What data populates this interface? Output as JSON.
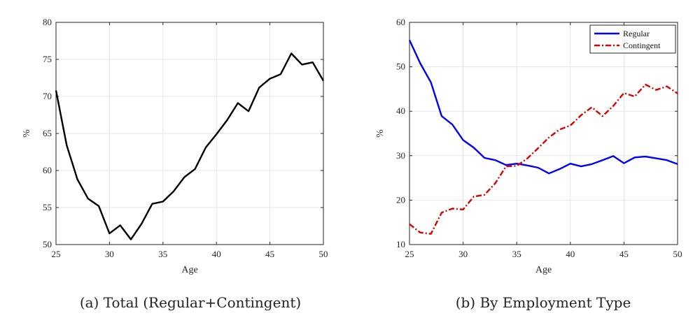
{
  "chart_data": [
    {
      "type": "line",
      "caption": "(a) Total (Regular+Contingent)",
      "xlabel": "Age",
      "ylabel": "%",
      "xlim": [
        25,
        50
      ],
      "ylim": [
        50,
        80
      ],
      "xticks": [
        25,
        30,
        35,
        40,
        45,
        50
      ],
      "yticks": [
        50,
        55,
        60,
        65,
        70,
        75,
        80
      ],
      "grid": true,
      "x": [
        25,
        26,
        27,
        28,
        29,
        30,
        31,
        32,
        33,
        34,
        35,
        36,
        37,
        38,
        39,
        40,
        41,
        42,
        43,
        44,
        45,
        46,
        47,
        48,
        49,
        50
      ],
      "series": [
        {
          "name": "",
          "color": "#000000",
          "dash": "solid",
          "values": [
            70.8,
            63.4,
            58.8,
            56.2,
            55.2,
            51.5,
            52.6,
            50.7,
            52.8,
            55.5,
            55.8,
            57.2,
            59.1,
            60.2,
            63.1,
            64.9,
            66.8,
            69.1,
            68.0,
            71.2,
            72.4,
            73.0,
            75.8,
            74.3,
            74.6,
            72.1
          ]
        }
      ]
    },
    {
      "type": "line",
      "caption": "(b) By Employment Type",
      "xlabel": "Age",
      "ylabel": "%",
      "xlim": [
        25,
        50
      ],
      "ylim": [
        10,
        60
      ],
      "xticks": [
        25,
        30,
        35,
        40,
        45,
        50
      ],
      "yticks": [
        10,
        20,
        30,
        40,
        50,
        60
      ],
      "grid": true,
      "legend": "top-right",
      "x": [
        25,
        26,
        27,
        28,
        29,
        30,
        31,
        32,
        33,
        34,
        35,
        36,
        37,
        38,
        39,
        40,
        41,
        42,
        43,
        44,
        45,
        46,
        47,
        48,
        49,
        50
      ],
      "series": [
        {
          "name": "Regular",
          "color": "#0000ff",
          "dash": "solid",
          "values": [
            56.0,
            50.8,
            46.5,
            38.9,
            37.0,
            33.5,
            31.8,
            29.5,
            29.0,
            27.9,
            28.2,
            27.8,
            27.3,
            26.0,
            27.0,
            28.2,
            27.6,
            28.1,
            29.0,
            29.9,
            28.3,
            29.6,
            29.8,
            29.4,
            29.0,
            28.1
          ]
        },
        {
          "name": "Contingent",
          "color": "#dd0000",
          "dash": "dashdot",
          "values": [
            14.6,
            12.7,
            12.4,
            17.2,
            18.1,
            17.9,
            20.8,
            21.2,
            23.8,
            27.6,
            27.7,
            29.4,
            31.7,
            34.1,
            35.9,
            36.8,
            39.1,
            40.9,
            38.9,
            41.2,
            44.1,
            43.3,
            46.0,
            44.8,
            45.6,
            44.0
          ]
        }
      ]
    }
  ]
}
